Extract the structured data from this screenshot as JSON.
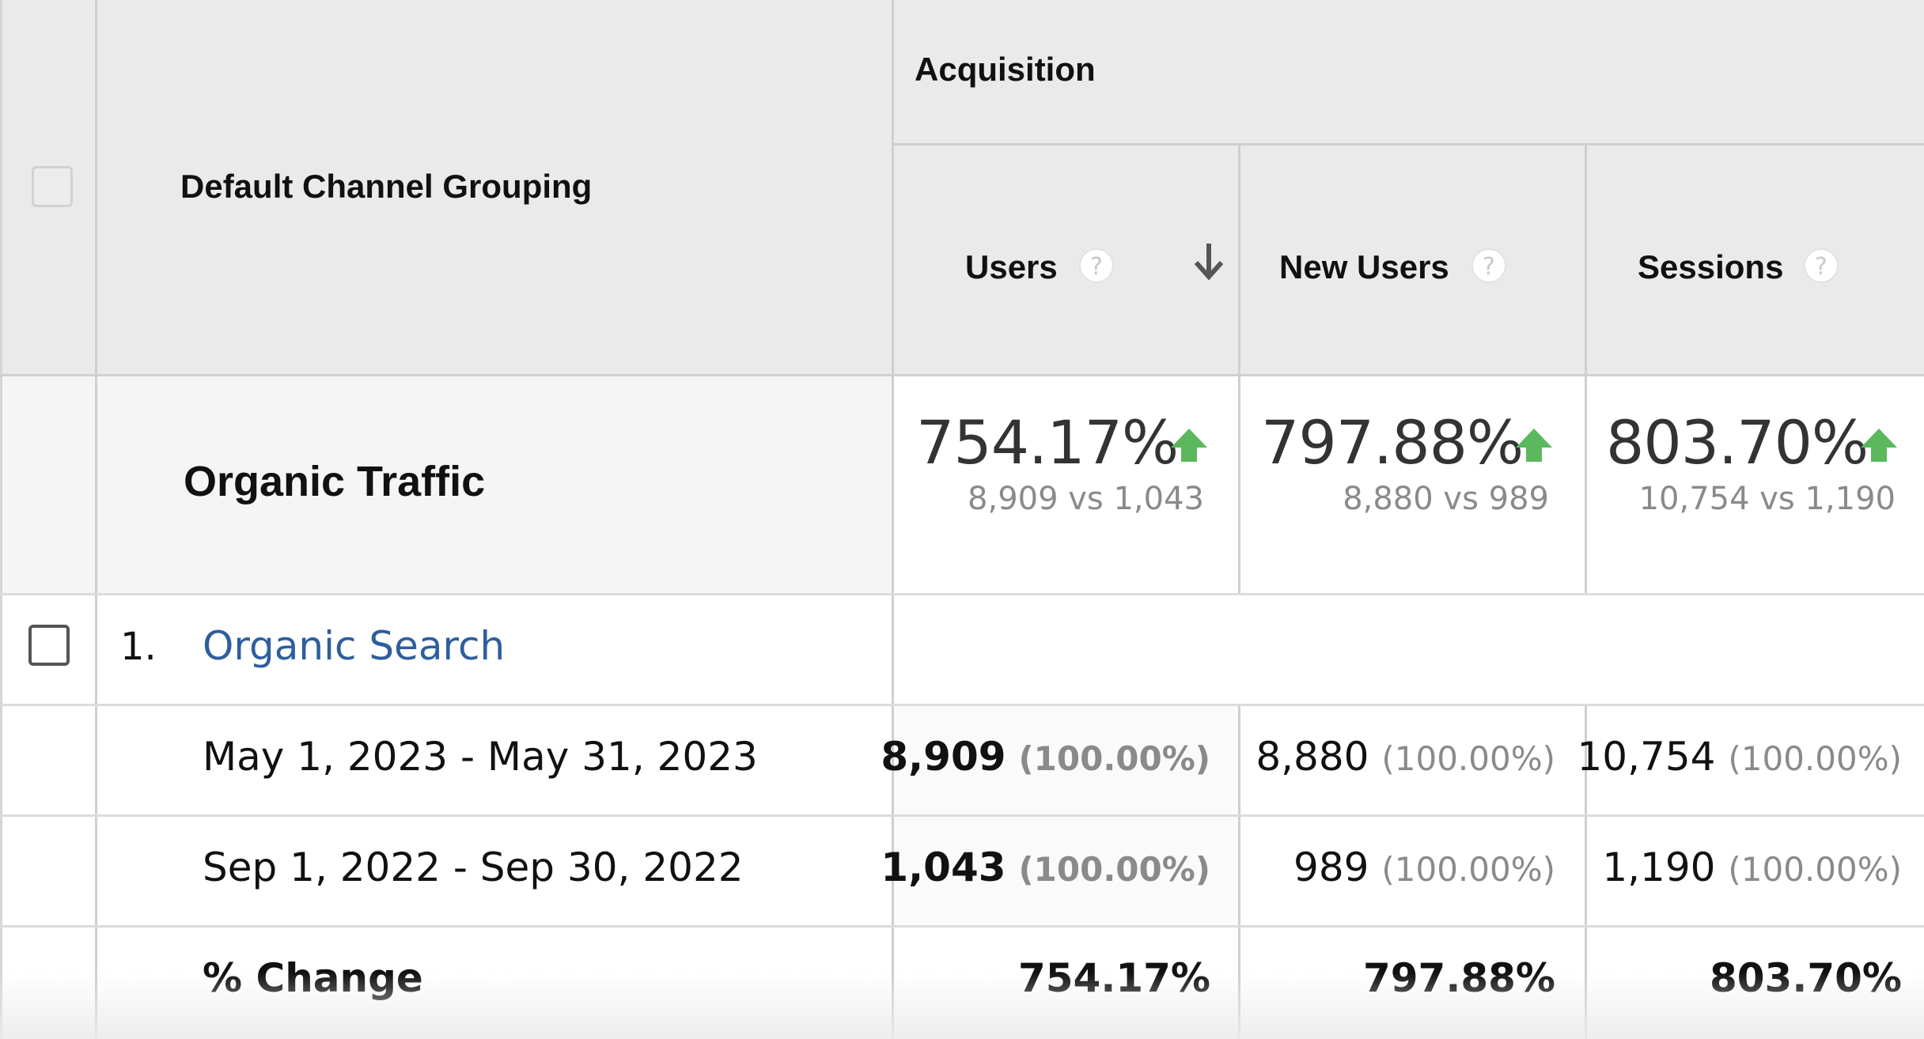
{
  "header": {
    "group_label": "Acquisition",
    "dimension_label": "Default Channel Grouping",
    "columns": [
      {
        "label": "Users",
        "help": "?",
        "sorted_desc": true
      },
      {
        "label": "New Users",
        "help": "?"
      },
      {
        "label": "Sessions",
        "help": "?"
      }
    ]
  },
  "summary": {
    "label": "Organic Traffic",
    "metrics": [
      {
        "change": "754.17%",
        "comparison": "8,909 vs 1,043"
      },
      {
        "change": "797.88%",
        "comparison": "8,880 vs 989"
      },
      {
        "change": "803.70%",
        "comparison": "10,754 vs 1,190"
      }
    ]
  },
  "rows": [
    {
      "index": "1.",
      "channel": "Organic Search",
      "periods": [
        {
          "label": "May 1, 2023 - May 31, 2023",
          "values": [
            {
              "value": "8,909",
              "pct": "(100.00%)"
            },
            {
              "value": "8,880",
              "pct": "(100.00%)"
            },
            {
              "value": "10,754",
              "pct": "(100.00%)"
            }
          ]
        },
        {
          "label": "Sep 1, 2022 - Sep 30, 2022",
          "values": [
            {
              "value": "1,043",
              "pct": "(100.00%)"
            },
            {
              "value": "989",
              "pct": "(100.00%)"
            },
            {
              "value": "1,190",
              "pct": "(100.00%)"
            }
          ]
        }
      ],
      "change_label": "% Change",
      "changes": [
        "754.17%",
        "797.88%",
        "803.70%"
      ]
    }
  ],
  "colors": {
    "link": "#2f5e9e",
    "up_arrow": "#5cb85c",
    "header_bg": "#eaeaea"
  }
}
